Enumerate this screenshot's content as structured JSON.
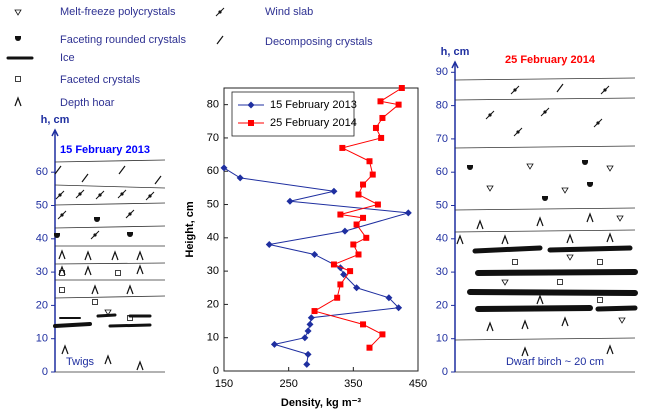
{
  "legend_items": [
    "Melt-freeze polycrystals",
    "Wind slab",
    "Faceting rounded crystals",
    "Decomposing crystals",
    "Ice",
    "Faceted crystals",
    "Depth hoar"
  ],
  "left_profile": {
    "title": "15 February 2013",
    "axis_label": "h, cm",
    "yticks": [
      0,
      10,
      20,
      30,
      40,
      50,
      60
    ],
    "note": "Twigs"
  },
  "right_profile": {
    "title": "25 February 2014",
    "axis_label": "h, cm",
    "yticks": [
      0,
      10,
      20,
      30,
      40,
      50,
      60,
      70,
      80,
      90
    ],
    "note": "Dwarf birch ~ 20 cm"
  },
  "chart_data": {
    "type": "line",
    "xlabel": "Density, kg m⁻³",
    "ylabel": "Height, cm",
    "xlim": [
      150,
      450
    ],
    "xticks": [
      150,
      250,
      350,
      450
    ],
    "ylim": [
      0,
      85
    ],
    "yticks": [
      0,
      10,
      20,
      30,
      40,
      50,
      60,
      70,
      80
    ],
    "legend": "upper left",
    "series": [
      {
        "name": "15 February 2013",
        "color": "#1f2fa0",
        "marker": "diamond",
        "x": [
          150,
          175,
          320,
          252,
          435,
          337,
          220,
          290,
          330,
          335,
          355,
          405,
          420,
          285,
          283,
          280,
          275,
          228,
          280,
          278
        ],
        "values": [
          61,
          58,
          54,
          51,
          47.5,
          42,
          38,
          35,
          31,
          29,
          25,
          22,
          19,
          16,
          14,
          12,
          10,
          8,
          5,
          2
        ]
      },
      {
        "name": "25 February 2014",
        "color": "#ff0000",
        "marker": "square",
        "x": [
          425,
          392,
          420,
          395,
          385,
          393,
          333,
          375,
          380,
          365,
          358,
          388,
          330,
          365,
          355,
          370,
          350,
          358,
          320,
          345,
          330,
          325,
          290,
          365,
          395,
          375
        ],
        "values": [
          85,
          81,
          80,
          76,
          73,
          70,
          67,
          63,
          59,
          56,
          53,
          50,
          47,
          46,
          44,
          40,
          38,
          35,
          32,
          30,
          26,
          22,
          18,
          14,
          11,
          7
        ]
      }
    ]
  }
}
